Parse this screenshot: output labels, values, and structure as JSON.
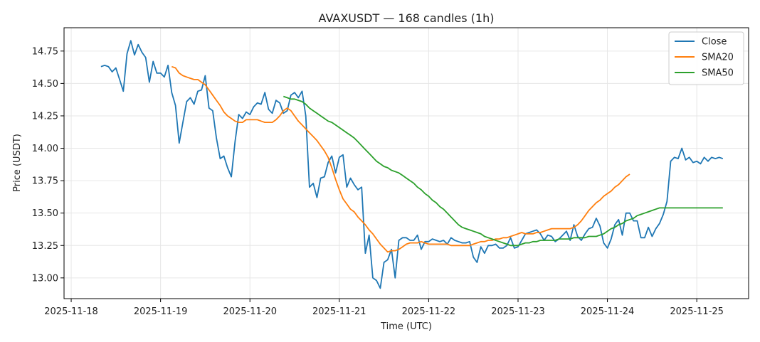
{
  "chart_data": {
    "type": "line",
    "title": "AVAXUSDT — 168 candles (1h)",
    "xlabel": "Time (UTC)",
    "ylabel": "Price (USDT)",
    "x_tick_labels": [
      "2025-11-18",
      "2025-11-19",
      "2025-11-20",
      "2025-11-21",
      "2025-11-22",
      "2025-11-23",
      "2025-11-24",
      "2025-11-25"
    ],
    "y_tick_labels": [
      "13.00",
      "13.25",
      "13.50",
      "13.75",
      "14.00",
      "14.25",
      "14.50",
      "14.75"
    ],
    "xlim_days": [
      -0.08,
      7.58
    ],
    "ylim": [
      12.84,
      14.93
    ],
    "x_start": "2025-11-18 08:00",
    "x_step_hours": 1,
    "grid": true,
    "legend_position": "top-right",
    "colors": {
      "close": "#1f77b4",
      "sma20": "#ff7f0e",
      "sma50": "#2ca02c"
    },
    "series": [
      {
        "name": "Close",
        "values": [
          14.63,
          14.64,
          14.63,
          14.59,
          14.62,
          14.53,
          14.44,
          14.73,
          14.83,
          14.72,
          14.8,
          14.74,
          14.7,
          14.51,
          14.67,
          14.58,
          14.58,
          14.55,
          14.64,
          14.43,
          14.33,
          14.04,
          14.2,
          14.36,
          14.39,
          14.34,
          14.44,
          14.45,
          14.56,
          14.31,
          14.29,
          14.08,
          13.92,
          13.94,
          13.85,
          13.78,
          14.05,
          14.26,
          14.23,
          14.28,
          14.26,
          14.32,
          14.35,
          14.34,
          14.43,
          14.3,
          14.27,
          14.37,
          14.35,
          14.27,
          14.29,
          14.41,
          14.43,
          14.39,
          14.44,
          14.25,
          13.7,
          13.73,
          13.62,
          13.77,
          13.78,
          13.89,
          13.94,
          13.81,
          13.93,
          13.95,
          13.7,
          13.77,
          13.72,
          13.68,
          13.7,
          13.19,
          13.33,
          13.0,
          12.98,
          12.92,
          13.12,
          13.14,
          13.22,
          13.0,
          13.29,
          13.31,
          13.31,
          13.29,
          13.29,
          13.33,
          13.22,
          13.28,
          13.28,
          13.3,
          13.29,
          13.28,
          13.29,
          13.26,
          13.31,
          13.29,
          13.28,
          13.27,
          13.27,
          13.28,
          13.16,
          13.12,
          13.24,
          13.19,
          13.25,
          13.25,
          13.26,
          13.23,
          13.23,
          13.25,
          13.31,
          13.23,
          13.24,
          13.29,
          13.34,
          13.35,
          13.36,
          13.37,
          13.34,
          13.29,
          13.33,
          13.32,
          13.28,
          13.3,
          13.33,
          13.36,
          13.29,
          13.41,
          13.32,
          13.29,
          13.34,
          13.38,
          13.39,
          13.46,
          13.4,
          13.27,
          13.23,
          13.3,
          13.41,
          13.45,
          13.33,
          13.5,
          13.5,
          13.44,
          13.44,
          13.31,
          13.31,
          13.39,
          13.32,
          13.38,
          13.42,
          13.49,
          13.59,
          13.9,
          13.93,
          13.92,
          14.0,
          13.91,
          13.93,
          13.89,
          13.9,
          13.88,
          13.93,
          13.9,
          13.93,
          13.92,
          13.93,
          13.92
        ]
      },
      {
        "name": "SMA20",
        "start_index": 19,
        "values": [
          14.63,
          14.62,
          14.58,
          14.56,
          14.55,
          14.54,
          14.53,
          14.53,
          14.51,
          14.49,
          14.45,
          14.41,
          14.37,
          14.33,
          14.28,
          14.25,
          14.23,
          14.21,
          14.2,
          14.2,
          14.22,
          14.22,
          14.22,
          14.22,
          14.21,
          14.2,
          14.2,
          14.2,
          14.22,
          14.25,
          14.29,
          14.31,
          14.29,
          14.25,
          14.21,
          14.18,
          14.15,
          14.12,
          14.09,
          14.06,
          14.02,
          13.98,
          13.93,
          13.85,
          13.76,
          13.68,
          13.61,
          13.57,
          13.53,
          13.51,
          13.47,
          13.44,
          13.41,
          13.37,
          13.34,
          13.3,
          13.26,
          13.23,
          13.2,
          13.21,
          13.21,
          13.22,
          13.24,
          13.26,
          13.27,
          13.27,
          13.27,
          13.28,
          13.27,
          13.26,
          13.26,
          13.26,
          13.26,
          13.26,
          13.26,
          13.25,
          13.25,
          13.25,
          13.25,
          13.25,
          13.25,
          13.26,
          13.27,
          13.28,
          13.28,
          13.29,
          13.29,
          13.3,
          13.3,
          13.31,
          13.31,
          13.32,
          13.33,
          13.34,
          13.35,
          13.34,
          13.34,
          13.34,
          13.35,
          13.35,
          13.36,
          13.37,
          13.38,
          13.38,
          13.38,
          13.38,
          13.38,
          13.38,
          13.39,
          13.41,
          13.44,
          13.48,
          13.52,
          13.55,
          13.58,
          13.6,
          13.63,
          13.65,
          13.67,
          13.7,
          13.72,
          13.75,
          13.78,
          13.8
        ]
      },
      {
        "name": "SMA50",
        "start_index": 49,
        "values": [
          14.4,
          14.39,
          14.38,
          14.38,
          14.37,
          14.36,
          14.34,
          14.31,
          14.29,
          14.27,
          14.25,
          14.23,
          14.21,
          14.2,
          14.18,
          14.16,
          14.14,
          14.12,
          14.1,
          14.08,
          14.05,
          14.02,
          13.99,
          13.96,
          13.93,
          13.9,
          13.88,
          13.86,
          13.85,
          13.83,
          13.82,
          13.81,
          13.79,
          13.77,
          13.75,
          13.73,
          13.7,
          13.68,
          13.65,
          13.63,
          13.6,
          13.58,
          13.55,
          13.53,
          13.5,
          13.47,
          13.44,
          13.41,
          13.39,
          13.38,
          13.37,
          13.36,
          13.35,
          13.34,
          13.32,
          13.31,
          13.3,
          13.29,
          13.28,
          13.27,
          13.26,
          13.25,
          13.25,
          13.25,
          13.26,
          13.27,
          13.27,
          13.28,
          13.28,
          13.29,
          13.29,
          13.29,
          13.29,
          13.29,
          13.3,
          13.3,
          13.3,
          13.3,
          13.31,
          13.31,
          13.31,
          13.31,
          13.32,
          13.32,
          13.32,
          13.33,
          13.34,
          13.36,
          13.38,
          13.39,
          13.41,
          13.42,
          13.44,
          13.45,
          13.46,
          13.48,
          13.49,
          13.5,
          13.51,
          13.52,
          13.53,
          13.54,
          13.54,
          13.54,
          13.54,
          13.54,
          13.54,
          13.54,
          13.54,
          13.54,
          13.54,
          13.54,
          13.54,
          13.54,
          13.54,
          13.54,
          13.54,
          13.54,
          13.54
        ]
      }
    ]
  }
}
